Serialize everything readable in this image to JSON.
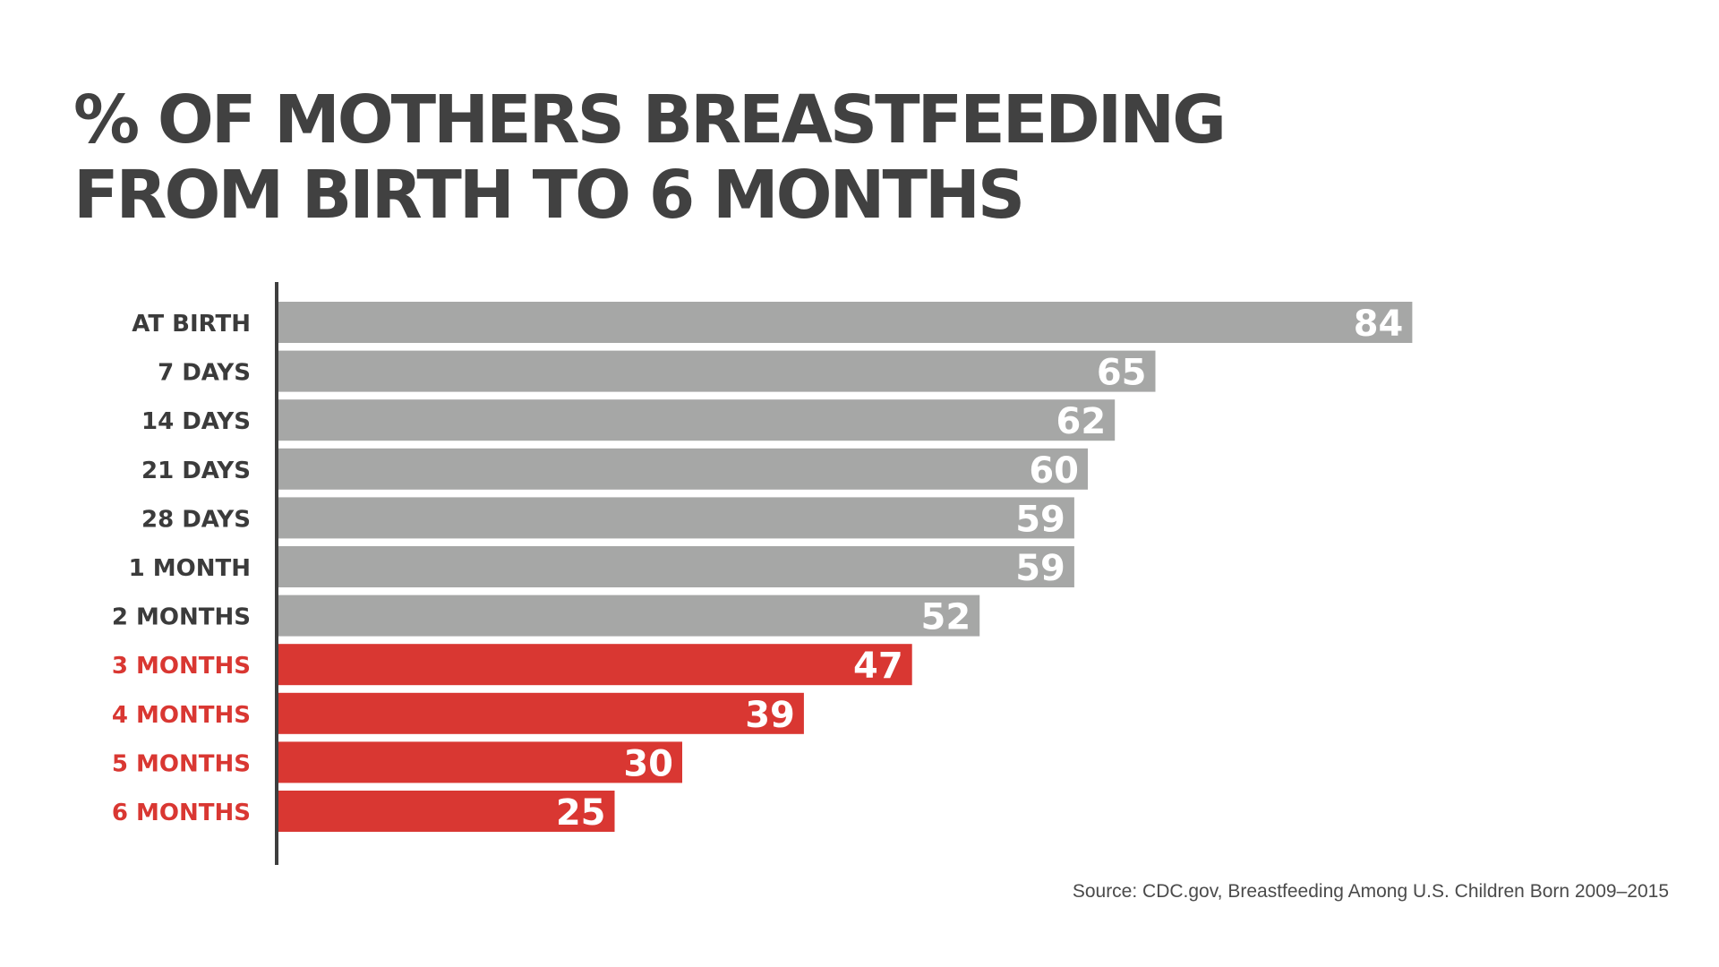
{
  "chart_data": {
    "type": "bar",
    "orientation": "horizontal",
    "title_lines": [
      "% OF MOTHERS BREASTFEEDING",
      "FROM BIRTH TO 6 MONTHS"
    ],
    "categories": [
      "AT BIRTH",
      "7 DAYS",
      "14 DAYS",
      "21 DAYS",
      "28 DAYS",
      "1 MONTH",
      "2 MONTHS",
      "3 MONTHS",
      "4 MONTHS",
      "5 MONTHS",
      "6 MONTHS"
    ],
    "values": [
      84,
      65,
      62,
      60,
      59,
      59,
      52,
      47,
      39,
      30,
      25
    ],
    "highlighted": [
      false,
      false,
      false,
      false,
      false,
      false,
      false,
      true,
      true,
      true,
      true
    ],
    "xlim": [
      0,
      100
    ],
    "xlabel": "",
    "ylabel": "",
    "grid": false,
    "data_labels": true
  },
  "colors": {
    "bar_default": "#a6a7a6",
    "bar_highlight": "#d93732",
    "label_default": "#3b3b3b",
    "label_highlight": "#d93732",
    "value_text": "#ffffff",
    "axis": "#3e3e3e",
    "title": "#414141"
  },
  "source": "Source: CDC.gov, Breastfeeding Among U.S. Children Born 2009–2015"
}
